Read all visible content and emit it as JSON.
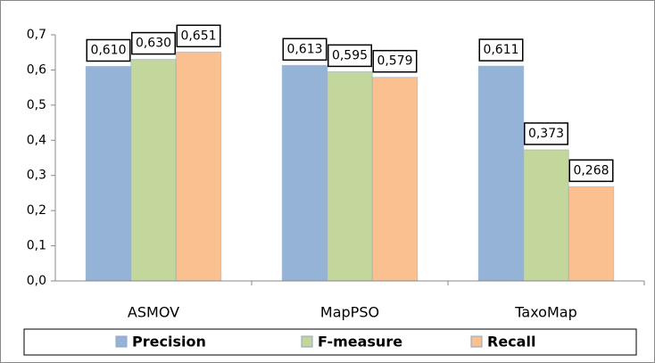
{
  "chart_data": {
    "type": "bar",
    "categories": [
      "ASMOV",
      "MapPSO",
      "TaxoMap"
    ],
    "series": [
      {
        "name": "Precision",
        "color": "#95b3d7",
        "values": [
          0.61,
          0.613,
          0.611
        ],
        "value_labels": [
          "0,610",
          "0,613",
          "0,611"
        ]
      },
      {
        "name": "F-measure",
        "color": "#c3d69b",
        "values": [
          0.63,
          0.595,
          0.373
        ],
        "value_labels": [
          "0,630",
          "0,595",
          "0,373"
        ]
      },
      {
        "name": "Recall",
        "color": "#fac090",
        "values": [
          0.651,
          0.579,
          0.268
        ],
        "value_labels": [
          "0,651",
          "0,579",
          "0,268"
        ]
      }
    ],
    "ylim": [
      0,
      0.7
    ],
    "yticks": [
      {
        "value": 0,
        "label": "0,0"
      },
      {
        "value": 0.1,
        "label": "0,1"
      },
      {
        "value": 0.2,
        "label": "0,2"
      },
      {
        "value": 0.3,
        "label": "0,3"
      },
      {
        "value": 0.4,
        "label": "0,4"
      },
      {
        "value": 0.5,
        "label": "0,5"
      },
      {
        "value": 0.6,
        "label": "0,6"
      },
      {
        "value": 0.7,
        "label": "0,7"
      }
    ],
    "grid": false,
    "legend": "bottom"
  }
}
